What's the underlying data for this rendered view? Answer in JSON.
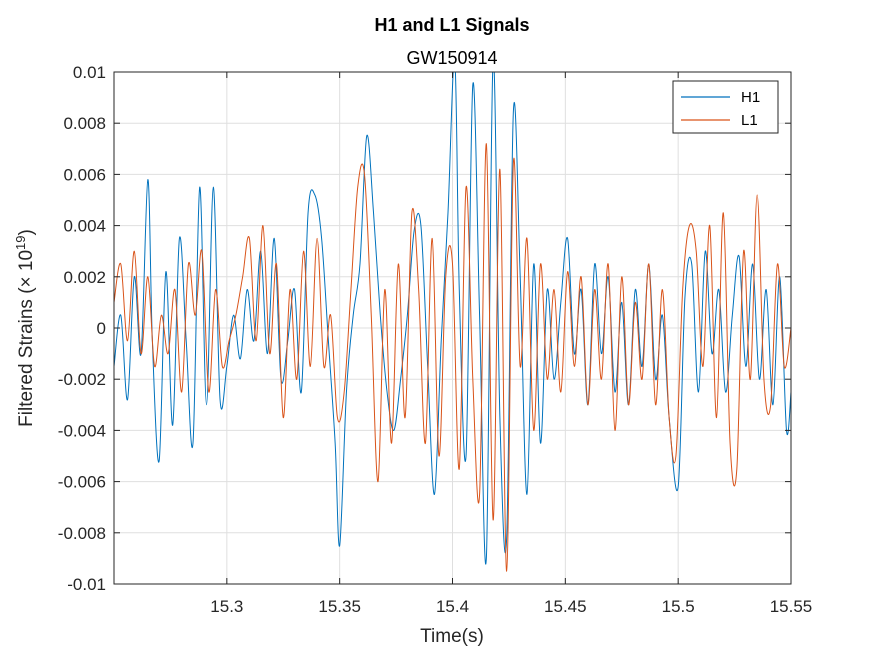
{
  "chart_data": {
    "type": "line",
    "title": "H1 and L1 Signals",
    "subtitle": "GW150914",
    "xlabel": "Time(s)",
    "ylabel": "Filtered Strains (× 10",
    "ylabel_exponent": "19",
    "ylabel_close": ")",
    "xlim": [
      15.25,
      15.55
    ],
    "ylim": [
      -0.01,
      0.01
    ],
    "x_ticks": [
      15.3,
      15.35,
      15.4,
      15.45,
      15.5,
      15.55
    ],
    "x_tick_labels": [
      "15.3",
      "15.35",
      "15.4",
      "15.45",
      "15.5",
      "15.55"
    ],
    "y_ticks": [
      -0.01,
      -0.008,
      -0.006,
      -0.004,
      -0.002,
      0,
      0.002,
      0.004,
      0.006,
      0.008,
      0.01
    ],
    "y_tick_labels": [
      "-0.01",
      "-0.008",
      "-0.006",
      "-0.004",
      "-0.002",
      "0",
      "0.002",
      "0.004",
      "0.006",
      "0.008",
      "0.01"
    ],
    "grid": true,
    "legend_position": "top-right",
    "series": [
      {
        "name": "H1",
        "color": "#0072BD",
        "x": [
          15.25,
          15.253,
          15.256,
          15.259,
          15.262,
          15.265,
          15.267,
          15.27,
          15.273,
          15.276,
          15.279,
          15.282,
          15.285,
          15.288,
          15.291,
          15.294,
          15.297,
          15.3,
          15.303,
          15.306,
          15.309,
          15.312,
          15.315,
          15.318,
          15.321,
          15.324,
          15.327,
          15.33,
          15.333,
          15.336,
          15.339,
          15.342,
          15.345,
          15.348,
          15.35,
          15.353,
          15.356,
          15.359,
          15.362,
          15.365,
          15.368,
          15.371,
          15.374,
          15.377,
          15.38,
          15.383,
          15.386,
          15.389,
          15.392,
          15.395,
          15.398,
          15.401,
          15.403,
          15.406,
          15.409,
          15.412,
          15.415,
          15.418,
          15.421,
          15.424,
          15.427,
          15.43,
          15.433,
          15.436,
          15.439,
          15.442,
          15.445,
          15.448,
          15.451,
          15.454,
          15.457,
          15.46,
          15.463,
          15.466,
          15.469,
          15.472,
          15.475,
          15.478,
          15.481,
          15.484,
          15.487,
          15.49,
          15.493,
          15.496,
          15.5,
          15.503,
          15.506,
          15.509,
          15.512,
          15.515,
          15.518,
          15.521,
          15.524,
          15.527,
          15.53,
          15.533,
          15.536,
          15.539,
          15.542,
          15.545,
          15.548,
          15.55
        ],
        "y": [
          -0.0015,
          0.0005,
          -0.0028,
          0.002,
          -0.001,
          0.0058,
          -0.0005,
          -0.0052,
          0.0022,
          -0.0038,
          0.0035,
          -0.0005,
          -0.0045,
          0.0055,
          -0.003,
          0.0055,
          -0.0028,
          -0.0015,
          0.0005,
          -0.0012,
          0.0015,
          -0.0005,
          0.003,
          -0.001,
          0.0035,
          -0.002,
          -0.0005,
          0.0015,
          -0.0025,
          0.0045,
          0.0052,
          0.0035,
          -0.0005,
          -0.0045,
          -0.0085,
          -0.0025,
          0.0005,
          0.0025,
          0.0075,
          0.0045,
          0.0005,
          -0.0025,
          -0.004,
          -0.002,
          0.0005,
          0.0038,
          0.004,
          -0.0015,
          -0.0065,
          -0.0005,
          0.0045,
          0.0105,
          0.0015,
          -0.005,
          0.0095,
          0.0005,
          -0.009,
          0.0105,
          -0.0035,
          -0.0082,
          0.0085,
          0.002,
          -0.0065,
          0.0025,
          -0.0045,
          0.0015,
          -0.002,
          0.001,
          0.0035,
          -0.001,
          0.0015,
          -0.003,
          0.0025,
          -0.001,
          0.002,
          -0.0025,
          0.001,
          -0.003,
          0.0015,
          -0.0015,
          0.0025,
          -0.002,
          0.0005,
          -0.0035,
          -0.0062,
          0.0012,
          0.0025,
          -0.0025,
          0.003,
          -0.001,
          0.0015,
          -0.0025,
          0.0005,
          0.0028,
          -0.0015,
          0.0025,
          -0.002,
          0.0015,
          -0.003,
          0.002,
          -0.004,
          -0.0025
        ]
      },
      {
        "name": "L1",
        "color": "#D95319",
        "x": [
          15.25,
          15.253,
          15.256,
          15.259,
          15.262,
          15.265,
          15.268,
          15.271,
          15.274,
          15.277,
          15.28,
          15.283,
          15.286,
          15.289,
          15.292,
          15.295,
          15.298,
          15.301,
          15.304,
          15.307,
          15.31,
          15.313,
          15.316,
          15.319,
          15.322,
          15.325,
          15.328,
          15.331,
          15.334,
          15.337,
          15.34,
          15.343,
          15.346,
          15.349,
          15.352,
          15.355,
          15.358,
          15.361,
          15.364,
          15.367,
          15.37,
          15.373,
          15.376,
          15.379,
          15.382,
          15.385,
          15.388,
          15.391,
          15.394,
          15.397,
          15.4,
          15.403,
          15.406,
          15.409,
          15.412,
          15.415,
          15.418,
          15.421,
          15.424,
          15.427,
          15.43,
          15.433,
          15.436,
          15.439,
          15.442,
          15.445,
          15.448,
          15.451,
          15.454,
          15.457,
          15.46,
          15.463,
          15.466,
          15.469,
          15.472,
          15.475,
          15.478,
          15.481,
          15.484,
          15.487,
          15.49,
          15.493,
          15.496,
          15.499,
          15.502,
          15.505,
          15.508,
          15.511,
          15.514,
          15.517,
          15.52,
          15.523,
          15.526,
          15.529,
          15.532,
          15.535,
          15.538,
          15.541,
          15.544,
          15.547,
          15.55
        ],
        "y": [
          0.001,
          0.0025,
          -0.0005,
          0.003,
          -0.001,
          0.002,
          -0.0015,
          0.0005,
          -0.001,
          0.0015,
          -0.0025,
          0.0025,
          0.0005,
          0.003,
          -0.0025,
          0.0015,
          -0.0015,
          -0.0005,
          0.0005,
          0.002,
          0.0035,
          -0.0005,
          0.004,
          -0.001,
          0.0025,
          -0.0035,
          0.0015,
          -0.002,
          0.003,
          -0.0015,
          0.0035,
          -0.0015,
          0.0005,
          -0.0035,
          -0.0025,
          0.0015,
          0.0055,
          0.006,
          0.0005,
          -0.006,
          0.0015,
          -0.0045,
          0.0025,
          -0.0035,
          0.0045,
          0.0015,
          -0.0045,
          0.0035,
          -0.005,
          0.002,
          0.0025,
          -0.0055,
          0.0055,
          -0.002,
          -0.0065,
          0.0072,
          -0.0075,
          0.0062,
          -0.0095,
          0.0065,
          -0.0015,
          0.0035,
          -0.004,
          0.0025,
          -0.002,
          0.0015,
          -0.0025,
          0.0022,
          -0.0015,
          0.002,
          -0.003,
          0.0015,
          -0.002,
          0.0025,
          -0.004,
          0.002,
          -0.003,
          0.001,
          -0.002,
          0.0025,
          -0.003,
          0.0015,
          -0.0035,
          -0.005,
          0.0015,
          0.004,
          0.003,
          -0.0015,
          0.004,
          -0.0035,
          0.0045,
          -0.0045,
          -0.0055,
          0.003,
          -0.002,
          0.0052,
          -0.002,
          -0.003,
          0.0025,
          -0.0015,
          0
        ]
      }
    ]
  }
}
